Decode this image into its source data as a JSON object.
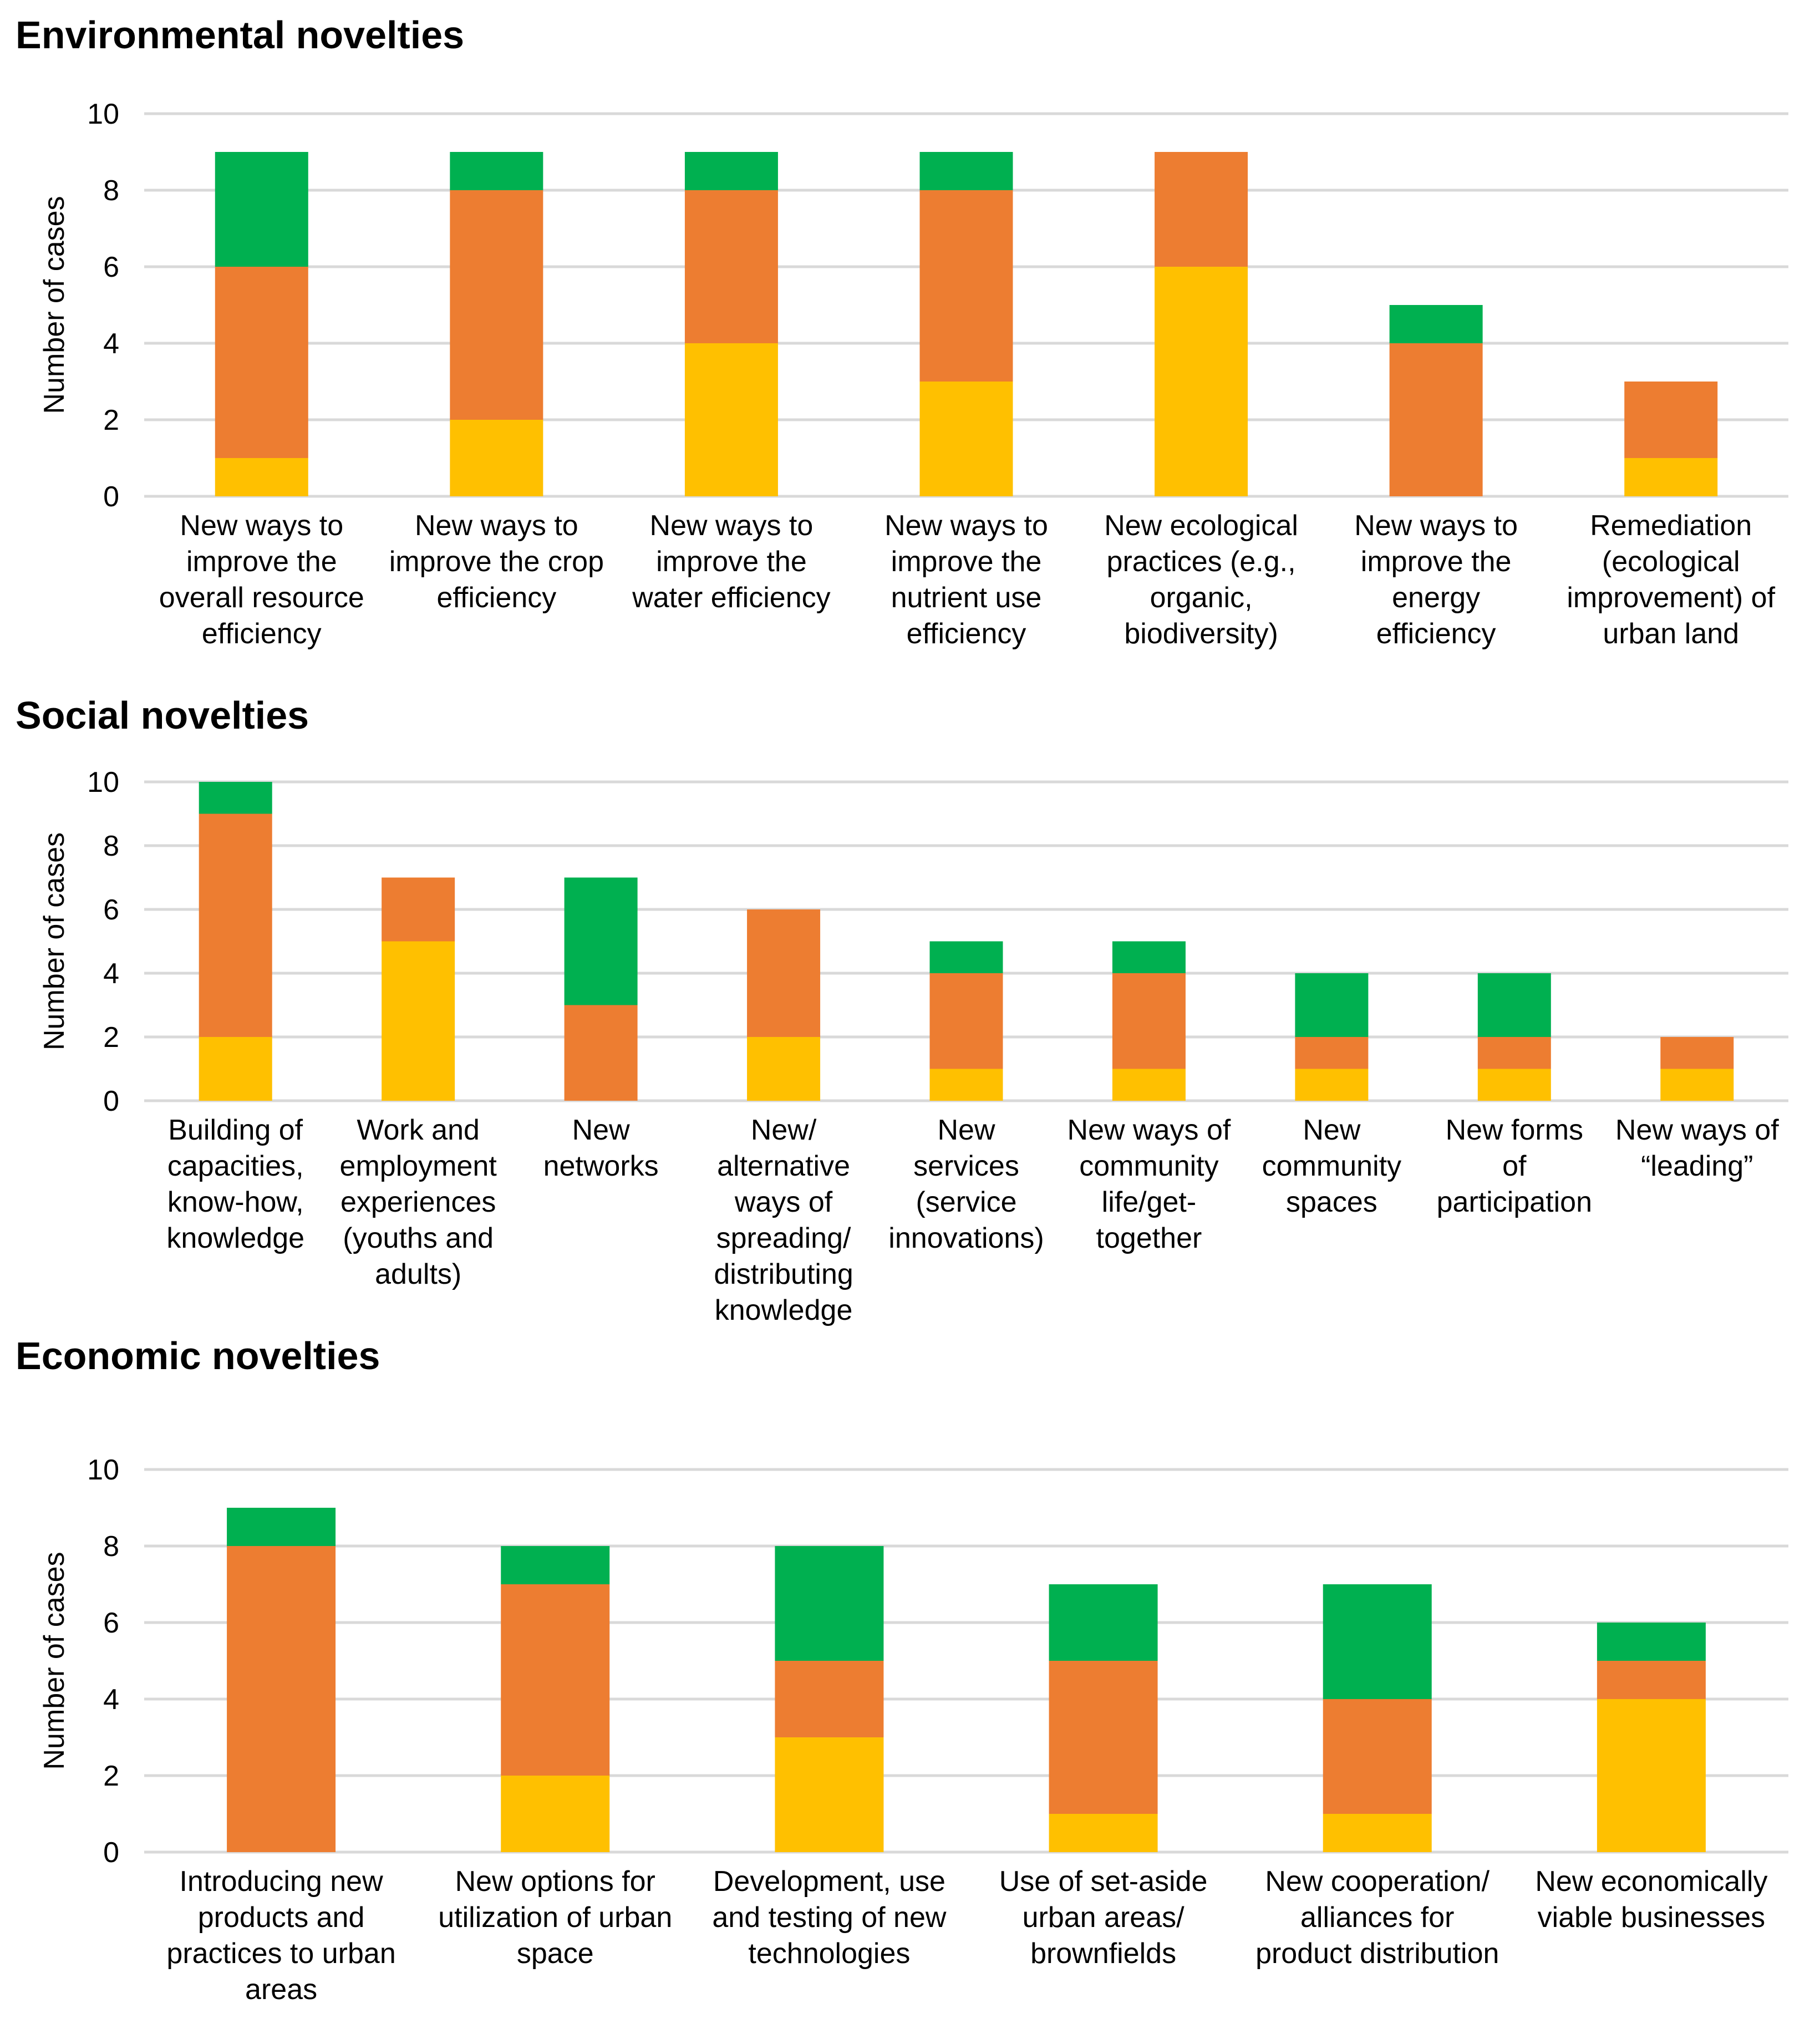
{
  "colors": {
    "yellow": "#FFC000",
    "orange": "#ED7D31",
    "green": "#00B050",
    "grid": "#D9D9D9"
  },
  "chart_data": [
    {
      "type": "bar",
      "stacked": true,
      "title": "Environmental novelties",
      "xlabel": "",
      "ylabel": "Number of cases",
      "ylim": [
        0,
        10
      ],
      "yticks": [
        0,
        2,
        4,
        6,
        8,
        10
      ],
      "grid": true,
      "legend": "none",
      "categories": [
        [
          "New ways to",
          "improve the",
          "overall resource",
          "efficiency"
        ],
        [
          "New ways to",
          "improve the crop",
          "efficiency"
        ],
        [
          "New ways to",
          "improve the",
          "water efficiency"
        ],
        [
          "New ways to",
          "improve the",
          "nutrient use",
          "efficiency"
        ],
        [
          "New ecological",
          "practices (e.g.,",
          "organic,",
          "biodiversity)"
        ],
        [
          "New ways to",
          "improve the",
          "energy",
          "efficiency"
        ],
        [
          "Remediation",
          "(ecological",
          "improvement) of",
          "urban land"
        ]
      ],
      "series": [
        {
          "name": "yellow",
          "color": "#FFC000",
          "values": [
            1,
            2,
            4,
            3,
            6,
            0,
            1
          ]
        },
        {
          "name": "orange",
          "color": "#ED7D31",
          "values": [
            5,
            6,
            4,
            5,
            3,
            4,
            2
          ]
        },
        {
          "name": "green",
          "color": "#00B050",
          "values": [
            3,
            1,
            1,
            1,
            0,
            1,
            0
          ]
        }
      ]
    },
    {
      "type": "bar",
      "stacked": true,
      "title": "Social novelties",
      "xlabel": "",
      "ylabel": "Number of cases",
      "ylim": [
        0,
        10
      ],
      "yticks": [
        0,
        2,
        4,
        6,
        8,
        10
      ],
      "grid": true,
      "legend": "none",
      "categories": [
        [
          "Building of",
          "capacities,",
          "know-how,",
          "knowledge"
        ],
        [
          "Work and",
          "employment",
          "experiences",
          "(youths and",
          "adults)"
        ],
        [
          "New",
          "networks"
        ],
        [
          "New/",
          "alternative",
          "ways of",
          "spreading/",
          "distributing",
          "knowledge"
        ],
        [
          "New",
          "services",
          "(service",
          "innovations)"
        ],
        [
          "New ways of",
          "community",
          "life/get-",
          "together"
        ],
        [
          "New",
          "community",
          "spaces"
        ],
        [
          "New forms",
          "of",
          "participation"
        ],
        [
          "New ways of",
          "“leading”"
        ]
      ],
      "series": [
        {
          "name": "yellow",
          "color": "#FFC000",
          "values": [
            2,
            5,
            0,
            2,
            1,
            1,
            1,
            1,
            1
          ]
        },
        {
          "name": "orange",
          "color": "#ED7D31",
          "values": [
            7,
            2,
            3,
            4,
            3,
            3,
            1,
            1,
            1
          ]
        },
        {
          "name": "green",
          "color": "#00B050",
          "values": [
            1,
            0,
            4,
            0,
            1,
            1,
            2,
            2,
            0
          ]
        }
      ]
    },
    {
      "type": "bar",
      "stacked": true,
      "title": "Economic novelties",
      "xlabel": "",
      "ylabel": "Number of cases",
      "ylim": [
        0,
        10
      ],
      "yticks": [
        0,
        2,
        4,
        6,
        8,
        10
      ],
      "grid": true,
      "legend": "none",
      "categories": [
        [
          "Introducing new",
          "products and",
          "practices to urban",
          "areas"
        ],
        [
          "New options for",
          "utilization of urban",
          "space"
        ],
        [
          "Development, use",
          "and testing of new",
          "technologies"
        ],
        [
          "Use of set-aside",
          "urban areas/",
          "brownfields"
        ],
        [
          "New cooperation/",
          "alliances for",
          "product distribution"
        ],
        [
          "New economically",
          "viable businesses"
        ]
      ],
      "series": [
        {
          "name": "yellow",
          "color": "#FFC000",
          "values": [
            0,
            2,
            3,
            1,
            1,
            4
          ]
        },
        {
          "name": "orange",
          "color": "#ED7D31",
          "values": [
            8,
            5,
            2,
            4,
            3,
            1
          ]
        },
        {
          "name": "green",
          "color": "#00B050",
          "values": [
            1,
            1,
            3,
            2,
            3,
            1
          ]
        }
      ]
    }
  ]
}
